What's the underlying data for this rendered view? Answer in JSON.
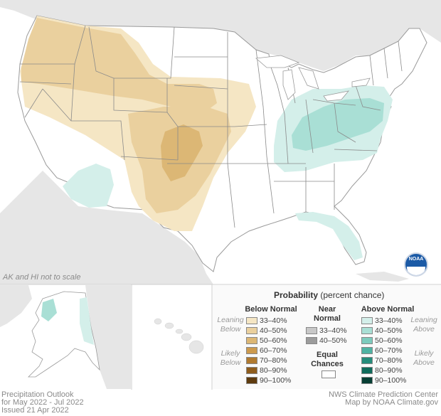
{
  "map": {
    "note": "AK and HI not to scale",
    "logo": "NOAA"
  },
  "legend": {
    "title_bold": "Probability",
    "title_rest": " (percent chance)",
    "below": {
      "header": "Below Normal",
      "leaning": "Leaning Below",
      "likely": "Likely Below",
      "rows": [
        "33–40%",
        "40–50%",
        "50–60%",
        "60–70%",
        "70–80%",
        "80–90%",
        "90–100%"
      ],
      "colors": [
        "#f5e6c4",
        "#ead09e",
        "#dcb775",
        "#cc9a4e",
        "#b07a30",
        "#8e5c1c",
        "#5e3b0e"
      ]
    },
    "near": {
      "header": "Near Normal",
      "rows": [
        "33–40%",
        "40–50%"
      ],
      "colors": [
        "#c8c8c8",
        "#9c9c9c"
      ]
    },
    "equal": {
      "label": "Equal Chances",
      "color": "#ffffff"
    },
    "above": {
      "header": "Above Normal",
      "leaning": "Leaning Above",
      "likely": "Likely Above",
      "rows": [
        "33–40%",
        "40–50%",
        "50–60%",
        "60–70%",
        "70–80%",
        "80–90%",
        "90–100%"
      ],
      "colors": [
        "#d4efea",
        "#a9dfd5",
        "#7dcbbd",
        "#4fb3a3",
        "#258c7b",
        "#0f6b5b",
        "#073f34"
      ]
    }
  },
  "footer": {
    "line1": "Precipitation Outlook",
    "line2": "for May 2022 - Jul 2022",
    "line3": "Issued 21 Apr 2022",
    "credit1": "NWS Climate Prediction Center",
    "credit2": "Map by NOAA Climate.gov"
  }
}
